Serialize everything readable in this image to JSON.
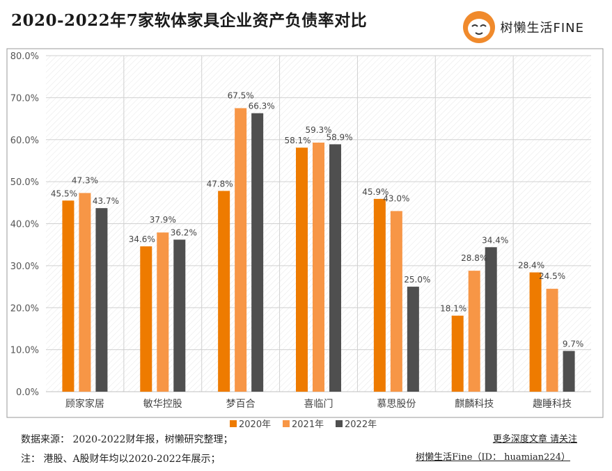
{
  "header": {
    "title": "2020-2022年7家软体家具企业资产负债率对比",
    "brand": "树懒生活FINE",
    "logo_icon": "sloth-logo-icon"
  },
  "colors": {
    "2020年": "#ee7b00",
    "2021年": "#f79646",
    "2022年": "#4f4f4f",
    "grid": "#d0d0d0",
    "border": "#999999"
  },
  "chart_data": {
    "type": "bar",
    "categories": [
      "顾家家居",
      "敏华控股",
      "梦百合",
      "喜临门",
      "慕思股份",
      "麒麟科技",
      "趣睡科技"
    ],
    "series": [
      {
        "name": "2020年",
        "values": [
          45.5,
          34.6,
          47.8,
          58.1,
          45.9,
          18.1,
          28.4
        ],
        "labels": [
          "45.5%",
          "34.6%",
          "47.8%",
          "58.1%",
          "45.9%",
          "18.1%",
          "28.4%"
        ]
      },
      {
        "name": "2021年",
        "values": [
          47.3,
          37.9,
          67.5,
          59.3,
          43.0,
          28.8,
          24.5
        ],
        "labels": [
          "47.3%",
          "37.9%",
          "67.5%",
          "59.3%",
          "43.0%",
          "28.8%",
          "24.5%"
        ]
      },
      {
        "name": "2022年",
        "values": [
          43.7,
          36.2,
          66.3,
          58.9,
          25.0,
          34.4,
          9.7
        ],
        "labels": [
          "43.7%",
          "36.2%",
          "66.3%",
          "58.9%",
          "25.0%",
          "34.4%",
          "9.7%"
        ]
      }
    ],
    "ylim": [
      0,
      80
    ],
    "yticks": [
      0,
      10,
      20,
      30,
      40,
      50,
      60,
      70,
      80
    ],
    "ytick_labels": [
      "0.0%",
      "10.0%",
      "20.0%",
      "30.0%",
      "40.0%",
      "50.0%",
      "60.0%",
      "70.0%",
      "80.0%"
    ],
    "grid": true,
    "legend_position": "bottom"
  },
  "footer": {
    "source": "数据来源：  2020-2022财年报，树懒研究整理；",
    "note": "注：  港股、A股财年均以2020-2022年展示；",
    "cta": "更多深度文章 请关注",
    "handle": "树懒生活Fine（ID：  huamian224）"
  }
}
